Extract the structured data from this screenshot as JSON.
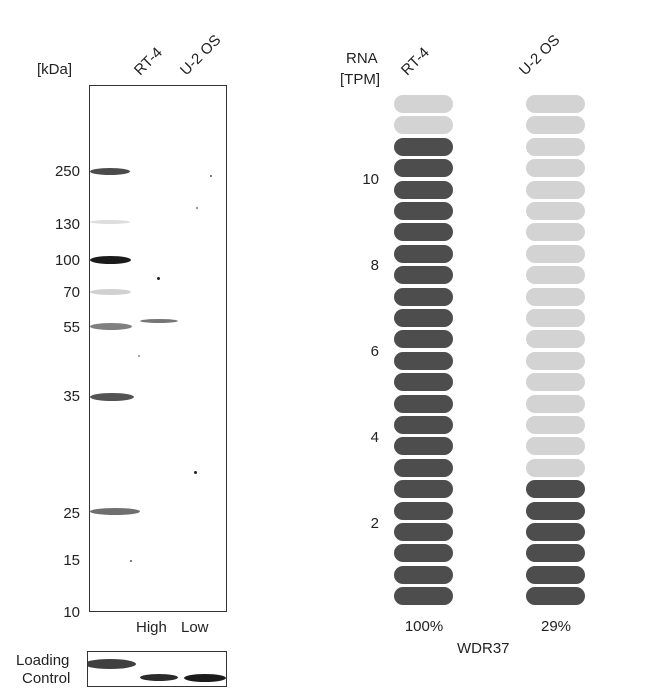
{
  "western_blot": {
    "unit_label": "[kDa]",
    "lanes": [
      "RT-4",
      "U-2 OS"
    ],
    "markers": [
      "250",
      "130",
      "100",
      "70",
      "55",
      "35",
      "25",
      "15",
      "10"
    ],
    "levels": [
      "High",
      "Low"
    ],
    "loading_control": {
      "line1": "Loading",
      "line2": "Control"
    }
  },
  "rna_chart": {
    "header": {
      "line1": "RNA",
      "line2": "[TPM]"
    },
    "y_ticks": [
      "10",
      "8",
      "6",
      "4",
      "2"
    ],
    "columns": [
      {
        "name": "RT-4",
        "percent": "100%",
        "filled": 22,
        "total": 24
      },
      {
        "name": "U-2 OS",
        "percent": "29%",
        "filled": 6,
        "total": 24
      }
    ],
    "gene": "WDR37",
    "colors": {
      "filled": "#4d4d4d",
      "empty": "#d3d3d3"
    }
  }
}
